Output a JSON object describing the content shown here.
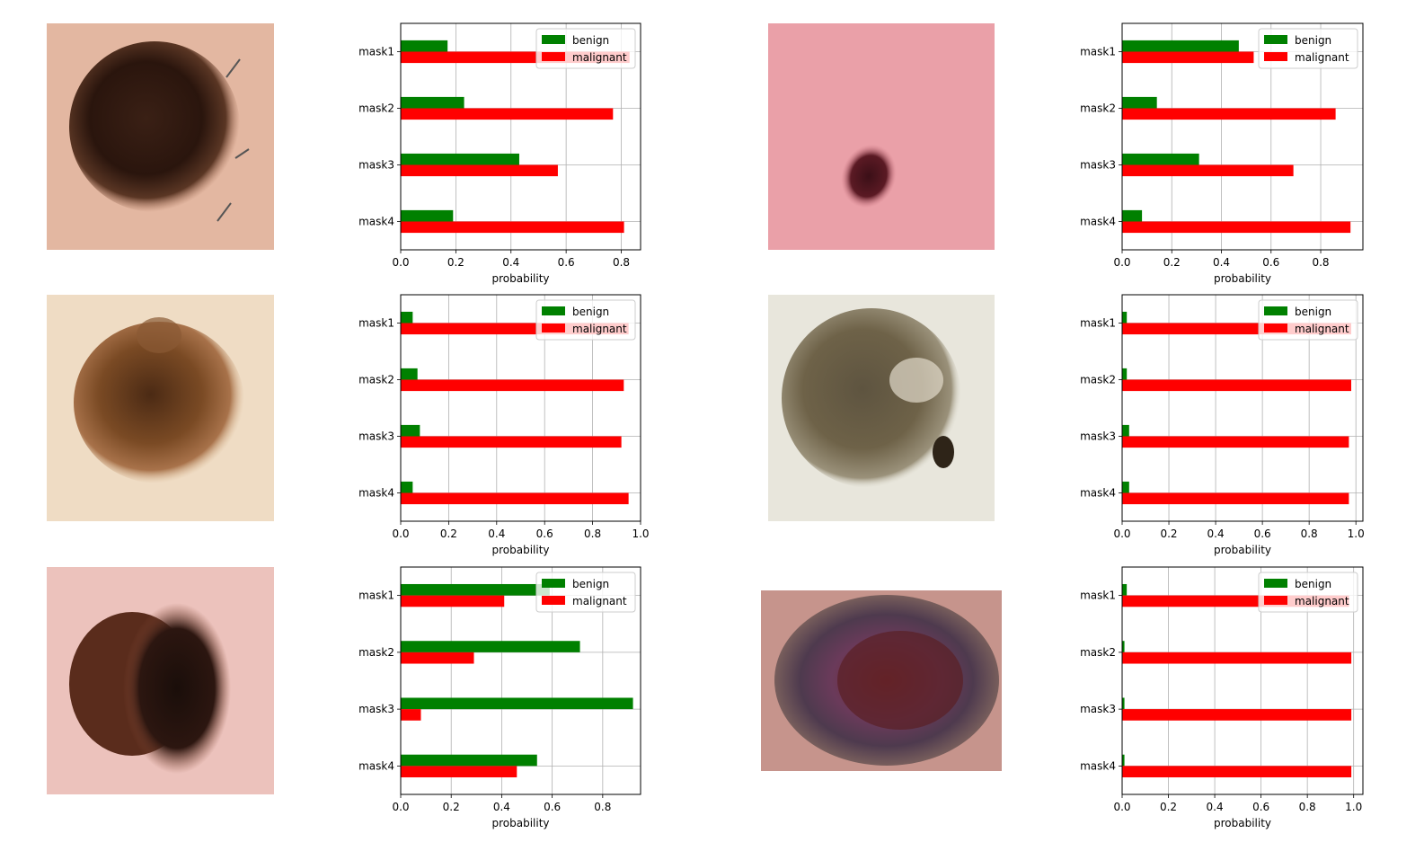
{
  "colors": {
    "benign": "#008000",
    "malignant": "#ff0000",
    "grid": "#b0b0b0"
  },
  "images": [
    {
      "name": "lesion-image-1",
      "type": "dermoscopy-photo"
    },
    {
      "name": "lesion-image-2",
      "type": "dermoscopy-photo"
    },
    {
      "name": "lesion-image-3",
      "type": "dermoscopy-photo"
    },
    {
      "name": "lesion-image-4",
      "type": "dermoscopy-photo"
    },
    {
      "name": "lesion-image-5",
      "type": "dermoscopy-photo"
    },
    {
      "name": "lesion-image-6",
      "type": "dermoscopy-photo"
    }
  ],
  "chart_data": [
    {
      "type": "bar",
      "orientation": "horizontal",
      "categories": [
        "mask1",
        "mask2",
        "mask3",
        "mask4"
      ],
      "series": [
        {
          "name": "benign",
          "values": [
            0.17,
            0.23,
            0.43,
            0.19
          ]
        },
        {
          "name": "malignant",
          "values": [
            0.83,
            0.77,
            0.57,
            0.81
          ]
        }
      ],
      "xlabel": "probability",
      "xlim": [
        0,
        0.87
      ],
      "xticks": [
        "0.0",
        "0.2",
        "0.4",
        "0.6",
        "0.8"
      ],
      "grid": true,
      "legend": "top-right"
    },
    {
      "type": "bar",
      "orientation": "horizontal",
      "categories": [
        "mask1",
        "mask2",
        "mask3",
        "mask4"
      ],
      "series": [
        {
          "name": "benign",
          "values": [
            0.47,
            0.14,
            0.31,
            0.08
          ]
        },
        {
          "name": "malignant",
          "values": [
            0.53,
            0.86,
            0.69,
            0.92
          ]
        }
      ],
      "xlabel": "probability",
      "xlim": [
        0,
        0.97
      ],
      "xticks": [
        "0.0",
        "0.2",
        "0.4",
        "0.6",
        "0.8"
      ],
      "grid": true,
      "legend": "top-right"
    },
    {
      "type": "bar",
      "orientation": "horizontal",
      "categories": [
        "mask1",
        "mask2",
        "mask3",
        "mask4"
      ],
      "series": [
        {
          "name": "benign",
          "values": [
            0.05,
            0.07,
            0.08,
            0.05
          ]
        },
        {
          "name": "malignant",
          "values": [
            0.95,
            0.93,
            0.92,
            0.95
          ]
        }
      ],
      "xlabel": "probability",
      "xlim": [
        0,
        1.0
      ],
      "xticks": [
        "0.0",
        "0.2",
        "0.4",
        "0.6",
        "0.8",
        "1.0"
      ],
      "grid": true,
      "legend": "top-right"
    },
    {
      "type": "bar",
      "orientation": "horizontal",
      "categories": [
        "mask1",
        "mask2",
        "mask3",
        "mask4"
      ],
      "series": [
        {
          "name": "benign",
          "values": [
            0.02,
            0.02,
            0.03,
            0.03
          ]
        },
        {
          "name": "malignant",
          "values": [
            0.98,
            0.98,
            0.97,
            0.97
          ]
        }
      ],
      "xlabel": "probability",
      "xlim": [
        0,
        1.03
      ],
      "xticks": [
        "0.0",
        "0.2",
        "0.4",
        "0.6",
        "0.8",
        "1.0"
      ],
      "grid": true,
      "legend": "top-right"
    },
    {
      "type": "bar",
      "orientation": "horizontal",
      "categories": [
        "mask1",
        "mask2",
        "mask3",
        "mask4"
      ],
      "series": [
        {
          "name": "benign",
          "values": [
            0.59,
            0.71,
            0.92,
            0.54
          ]
        },
        {
          "name": "malignant",
          "values": [
            0.41,
            0.29,
            0.08,
            0.46
          ]
        }
      ],
      "xlabel": "probability",
      "xlim": [
        0,
        0.95
      ],
      "xticks": [
        "0.0",
        "0.2",
        "0.4",
        "0.6",
        "0.8"
      ],
      "grid": true,
      "legend": "top-right"
    },
    {
      "type": "bar",
      "orientation": "horizontal",
      "categories": [
        "mask1",
        "mask2",
        "mask3",
        "mask4"
      ],
      "series": [
        {
          "name": "benign",
          "values": [
            0.02,
            0.01,
            0.01,
            0.01
          ]
        },
        {
          "name": "malignant",
          "values": [
            0.98,
            0.99,
            0.99,
            0.99
          ]
        }
      ],
      "xlabel": "probability",
      "xlim": [
        0,
        1.04
      ],
      "xticks": [
        "0.0",
        "0.2",
        "0.4",
        "0.6",
        "0.8",
        "1.0"
      ],
      "grid": true,
      "legend": "top-right"
    }
  ]
}
